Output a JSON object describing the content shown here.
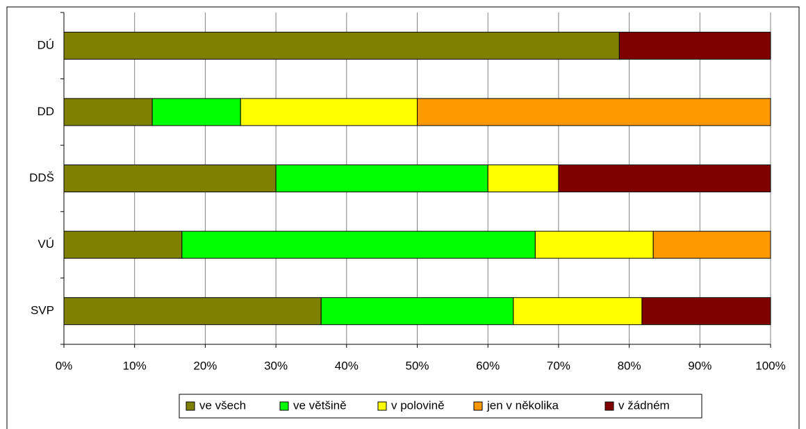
{
  "chart_data": {
    "type": "stacked_barh",
    "categories": [
      "DÚ",
      "DD",
      "DDŠ",
      "VÚ",
      "SVP"
    ],
    "series": [
      {
        "name": "ve všech",
        "color": "#808000",
        "values": [
          78.6,
          12.5,
          30,
          16.7,
          36.4
        ]
      },
      {
        "name": "ve většině",
        "color": "#00ff00",
        "values": [
          0,
          12.5,
          30,
          50,
          27.2
        ]
      },
      {
        "name": "v polovině",
        "color": "#ffff00",
        "values": [
          0,
          25,
          10,
          16.7,
          18.2
        ]
      },
      {
        "name": "jen v  několika",
        "color": "#ff9900",
        "values": [
          0,
          50,
          0,
          16.6,
          0
        ]
      },
      {
        "name": "v žádném",
        "color": "#800000",
        "values": [
          21.4,
          0,
          30,
          0,
          18.2
        ]
      }
    ],
    "xlim": [
      0,
      100
    ],
    "xticks": [
      {
        "value": 0,
        "label": "0%"
      },
      {
        "value": 10,
        "label": "10%"
      },
      {
        "value": 20,
        "label": "20%"
      },
      {
        "value": 30,
        "label": "30%"
      },
      {
        "value": 40,
        "label": "40%"
      },
      {
        "value": 50,
        "label": "50%"
      },
      {
        "value": 60,
        "label": "60%"
      },
      {
        "value": 70,
        "label": "70%"
      },
      {
        "value": 80,
        "label": "80%"
      },
      {
        "value": 90,
        "label": "90%"
      },
      {
        "value": 100,
        "label": "100%"
      }
    ],
    "grid": true,
    "legend": "bottom"
  }
}
